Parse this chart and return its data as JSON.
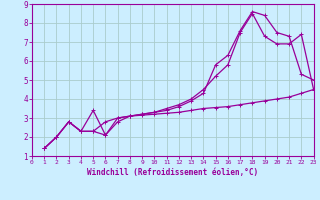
{
  "bg_color": "#cceeff",
  "grid_color": "#aacccc",
  "line_color": "#990099",
  "xlabel": "Windchill (Refroidissement éolien,°C)",
  "xlim": [
    0,
    23
  ],
  "ylim": [
    1,
    9
  ],
  "xticks": [
    0,
    1,
    2,
    3,
    4,
    5,
    6,
    7,
    8,
    9,
    10,
    11,
    12,
    13,
    14,
    15,
    16,
    17,
    18,
    19,
    20,
    21,
    22,
    23
  ],
  "yticks": [
    1,
    2,
    3,
    4,
    5,
    6,
    7,
    8,
    9
  ],
  "line1_x": [
    1,
    2,
    3,
    4,
    5,
    6,
    7,
    8,
    9,
    10,
    11,
    12,
    13,
    14,
    15,
    16,
    17,
    18,
    19,
    20,
    21,
    22,
    23
  ],
  "line1_y": [
    1.4,
    2.0,
    2.8,
    2.3,
    2.3,
    2.8,
    3.0,
    3.1,
    3.15,
    3.2,
    3.25,
    3.3,
    3.4,
    3.5,
    3.55,
    3.6,
    3.7,
    3.8,
    3.9,
    4.0,
    4.1,
    4.3,
    4.5
  ],
  "line2_x": [
    1,
    2,
    3,
    4,
    5,
    6,
    7,
    8,
    9,
    10,
    11,
    12,
    13,
    14,
    15,
    16,
    17,
    18,
    19,
    20,
    21,
    22,
    23
  ],
  "line2_y": [
    1.4,
    2.0,
    2.8,
    2.3,
    3.4,
    2.1,
    3.0,
    3.1,
    3.2,
    3.3,
    3.4,
    3.6,
    3.9,
    4.3,
    5.8,
    6.3,
    7.6,
    8.6,
    8.4,
    7.5,
    7.3,
    5.3,
    5.0
  ],
  "line3_x": [
    1,
    2,
    3,
    4,
    5,
    6,
    7,
    8,
    9,
    10,
    11,
    12,
    13,
    14,
    15,
    16,
    17,
    18,
    19,
    20,
    21,
    22,
    23
  ],
  "line3_y": [
    1.4,
    2.0,
    2.8,
    2.3,
    2.3,
    2.1,
    2.8,
    3.1,
    3.2,
    3.3,
    3.5,
    3.7,
    4.0,
    4.5,
    5.2,
    5.8,
    7.5,
    8.5,
    7.3,
    6.9,
    6.9,
    7.4,
    4.5
  ]
}
